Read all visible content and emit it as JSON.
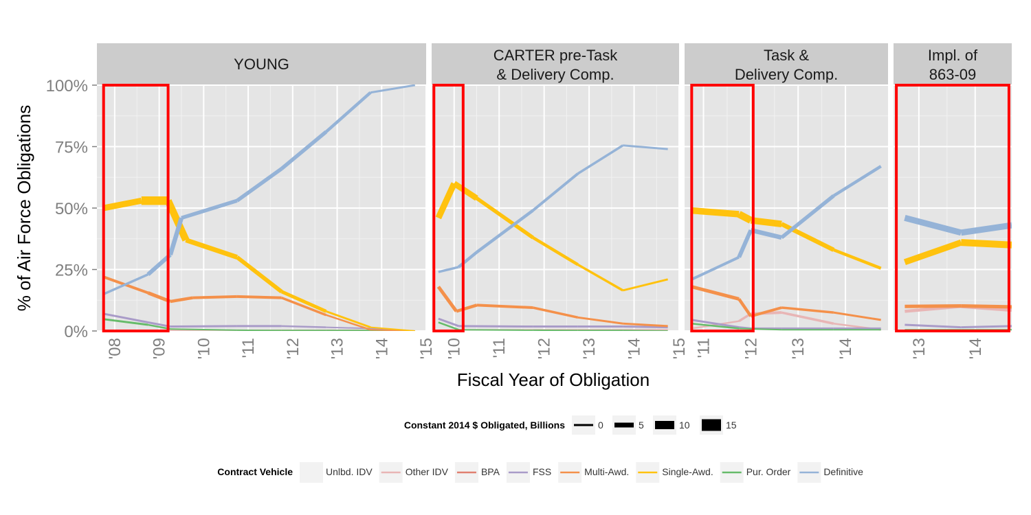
{
  "chart_data": {
    "type": "line",
    "ylabel": "% of  Air Force  Obligations",
    "xlabel": "Fiscal Year of Obligation",
    "y_ticks": [
      "0%",
      "25%",
      "50%",
      "75%",
      "100%"
    ],
    "ylim": [
      0,
      1
    ],
    "colors": {
      "Unlbd. IDV": "#f2f2f2",
      "Other IDV": "#e8b5b5",
      "BPA": "#e08070",
      "FSS": "#a99bc8",
      "Multi-Awd.": "#f4904a",
      "Single-Awd.": "#ffc20e",
      "Pur. Order": "#66bb6a",
      "Definitive": "#95b3d7",
      "highlight": "#ff0000"
    },
    "panels": [
      {
        "title": "YOUNG",
        "xlim": [
          2007.6,
          2015.0
        ],
        "x_ticks": [
          "'08",
          "'09",
          "'10",
          "'11",
          "'12",
          "'13",
          "'14",
          "'15"
        ],
        "x_tick_values": [
          2008,
          2009,
          2010,
          2011,
          2012,
          2013,
          2014,
          2015
        ],
        "highlight": [
          2007.75,
          2009.2
        ],
        "series": [
          {
            "name": "Definitive",
            "x": [
              2007.75,
              2008.75,
              2009.25,
              2009.5,
              2010.75,
              2011.75,
              2012.75,
              2013.75,
              2014.75
            ],
            "y": [
              0.15,
              0.23,
              0.31,
              0.46,
              0.53,
              0.66,
              0.81,
              0.97,
              1.0
            ],
            "w": [
              2,
              5,
              7,
              6,
              5,
              6,
              5,
              4,
              2
            ]
          },
          {
            "name": "Single-Awd.",
            "x": [
              2007.75,
              2008.6,
              2009.2,
              2009.6,
              2010.75,
              2011.75,
              2012.75,
              2013.75,
              2014.75
            ],
            "y": [
              0.5,
              0.53,
              0.53,
              0.37,
              0.3,
              0.16,
              0.08,
              0.015,
              0.0
            ],
            "w": [
              6,
              12,
              13,
              8,
              6,
              6,
              4,
              2,
              2
            ]
          },
          {
            "name": "Multi-Awd.",
            "x": [
              2007.75,
              2008.75,
              2009.25,
              2009.75,
              2010.75,
              2011.75,
              2012.75,
              2013.75,
              2014.75
            ],
            "y": [
              0.22,
              0.155,
              0.12,
              0.135,
              0.14,
              0.135,
              0.065,
              0.005,
              0.0
            ],
            "w": [
              3,
              5,
              5,
              4,
              4,
              4,
              3,
              2,
              2
            ]
          },
          {
            "name": "FSS",
            "x": [
              2007.75,
              2008.75,
              2009.25,
              2010.75,
              2011.75,
              2012.75,
              2013.75,
              2014.75
            ],
            "y": [
              0.07,
              0.035,
              0.018,
              0.02,
              0.02,
              0.015,
              0.01,
              0.0
            ],
            "w": [
              3,
              3,
              3,
              3,
              3,
              2,
              2,
              2
            ]
          },
          {
            "name": "Pur. Order",
            "x": [
              2007.75,
              2008.75,
              2009.25,
              2010.75,
              2011.75,
              2012.75,
              2013.75,
              2014.75
            ],
            "y": [
              0.048,
              0.025,
              0.008,
              0.003,
              0.002,
              0.002,
              0.002,
              0.0
            ],
            "w": [
              3,
              3,
              2,
              2,
              2,
              2,
              2,
              2
            ]
          },
          {
            "name": "Other IDV",
            "x": [
              2007.75,
              2009.25,
              2010.75,
              2011.75,
              2012.75,
              2013.75,
              2014.75
            ],
            "y": [
              0.003,
              0.003,
              0.003,
              0.003,
              0.003,
              0.003,
              0.0
            ],
            "w": [
              2,
              2,
              2,
              2,
              2,
              2,
              2
            ]
          }
        ]
      },
      {
        "title": "CARTER pre-Task",
        "title2": "& Delivery Comp.",
        "xlim": [
          2009.5,
          2015.0
        ],
        "x_ticks": [
          "'10",
          "'11",
          "'12",
          "'13",
          "'14",
          "'15"
        ],
        "x_tick_values": [
          2010,
          2011,
          2012,
          2013,
          2014,
          2015
        ],
        "highlight": [
          2009.55,
          2010.2
        ],
        "series": [
          {
            "name": "Definitive",
            "x": [
              2009.65,
              2010.1,
              2010.5,
              2011.75,
              2012.75,
              2013.75,
              2014.75
            ],
            "y": [
              0.24,
              0.26,
              0.32,
              0.49,
              0.64,
              0.755,
              0.74
            ],
            "w": [
              3,
              4,
              5,
              4,
              4,
              3,
              3
            ]
          },
          {
            "name": "Single-Awd.",
            "x": [
              2009.65,
              2010.0,
              2010.5,
              2011.75,
              2012.75,
              2013.75,
              2014.75
            ],
            "y": [
              0.46,
              0.6,
              0.54,
              0.38,
              0.27,
              0.165,
              0.21
            ],
            "w": [
              7,
              11,
              6,
              5,
              4,
              3,
              3
            ]
          },
          {
            "name": "Multi-Awd.",
            "x": [
              2009.65,
              2010.05,
              2010.5,
              2011.75,
              2012.75,
              2013.75,
              2014.75
            ],
            "y": [
              0.18,
              0.08,
              0.105,
              0.095,
              0.055,
              0.03,
              0.02
            ],
            "w": [
              5,
              5,
              4,
              4,
              3,
              3,
              3
            ]
          },
          {
            "name": "FSS",
            "x": [
              2009.65,
              2010.1,
              2011.75,
              2012.75,
              2013.75,
              2014.75
            ],
            "y": [
              0.05,
              0.02,
              0.018,
              0.018,
              0.018,
              0.015
            ],
            "w": [
              3,
              3,
              3,
              3,
              3,
              3
            ]
          },
          {
            "name": "Pur. Order",
            "x": [
              2009.65,
              2010.1,
              2011.75,
              2012.75,
              2013.75,
              2014.75
            ],
            "y": [
              0.035,
              0.005,
              0.003,
              0.002,
              0.002,
              0.0
            ],
            "w": [
              3,
              2,
              2,
              2,
              2,
              2
            ]
          },
          {
            "name": "Other IDV",
            "x": [
              2009.65,
              2010.5,
              2011.75,
              2012.75,
              2013.75,
              2014.75
            ],
            "y": [
              0.003,
              0.005,
              0.005,
              0.005,
              0.005,
              0.005
            ],
            "w": [
              2,
              2,
              2,
              2,
              2,
              2
            ]
          }
        ]
      },
      {
        "title": "Task &",
        "title2": "Delivery Comp.",
        "xlim": [
          2010.6,
          2014.9
        ],
        "x_ticks": [
          "'11",
          "'12",
          "'13",
          "'14"
        ],
        "x_tick_values": [
          2011,
          2012,
          2013,
          2014
        ],
        "highlight": [
          2010.75,
          2012.05
        ],
        "series": [
          {
            "name": "Definitive",
            "x": [
              2010.75,
              2011.75,
              2012.0,
              2012.65,
              2013.75,
              2014.75
            ],
            "y": [
              0.21,
              0.3,
              0.41,
              0.38,
              0.55,
              0.67
            ],
            "w": [
              3,
              5,
              7,
              6,
              5,
              4
            ]
          },
          {
            "name": "Single-Awd.",
            "x": [
              2010.75,
              2011.75,
              2012.0,
              2012.65,
              2013.75,
              2014.75
            ],
            "y": [
              0.49,
              0.475,
              0.45,
              0.435,
              0.33,
              0.255
            ],
            "w": [
              9,
              10,
              11,
              8,
              5,
              4
            ]
          },
          {
            "name": "Multi-Awd.",
            "x": [
              2010.75,
              2011.75,
              2012.0,
              2012.65,
              2013.75,
              2014.75
            ],
            "y": [
              0.18,
              0.13,
              0.06,
              0.095,
              0.075,
              0.045
            ],
            "w": [
              5,
              5,
              4,
              4,
              3,
              3
            ]
          },
          {
            "name": "Other IDV",
            "x": [
              2010.75,
              2011.75,
              2012.0,
              2012.65,
              2013.75,
              2014.75
            ],
            "y": [
              0.01,
              0.04,
              0.07,
              0.075,
              0.03,
              0.005
            ],
            "w": [
              2,
              3,
              4,
              4,
              3,
              2
            ]
          },
          {
            "name": "FSS",
            "x": [
              2010.75,
              2011.75,
              2012.0,
              2012.65,
              2013.75,
              2014.75
            ],
            "y": [
              0.045,
              0.015,
              0.01,
              0.01,
              0.01,
              0.01
            ],
            "w": [
              3,
              3,
              3,
              3,
              3,
              3
            ]
          },
          {
            "name": "Pur. Order",
            "x": [
              2010.75,
              2011.75,
              2012.65,
              2013.75,
              2014.75
            ],
            "y": [
              0.03,
              0.01,
              0.005,
              0.005,
              0.005
            ],
            "w": [
              3,
              2,
              2,
              2,
              2
            ]
          }
        ]
      },
      {
        "title": "Impl. of",
        "title2": "863-09",
        "xlim": [
          2012.55,
          2014.65
        ],
        "x_ticks": [
          "'13",
          "'14"
        ],
        "x_tick_values": [
          2013,
          2014
        ],
        "highlight": [
          2012.6,
          2014.6
        ],
        "series": [
          {
            "name": "Definitive",
            "x": [
              2012.75,
              2013.75,
              2014.65
            ],
            "y": [
              0.46,
              0.4,
              0.43
            ],
            "w": [
              9,
              9,
              9
            ]
          },
          {
            "name": "Single-Awd.",
            "x": [
              2012.75,
              2013.75,
              2014.65
            ],
            "y": [
              0.28,
              0.36,
              0.35
            ],
            "w": [
              8,
              10,
              10
            ]
          },
          {
            "name": "Multi-Awd.",
            "x": [
              2012.75,
              2013.75,
              2014.65
            ],
            "y": [
              0.1,
              0.102,
              0.098
            ],
            "w": [
              5,
              5,
              5
            ]
          },
          {
            "name": "Other IDV",
            "x": [
              2012.75,
              2013.75,
              2014.65
            ],
            "y": [
              0.08,
              0.1,
              0.085
            ],
            "w": [
              4,
              5,
              5
            ]
          },
          {
            "name": "FSS",
            "x": [
              2012.75,
              2013.75,
              2014.65
            ],
            "y": [
              0.025,
              0.015,
              0.02
            ],
            "w": [
              3,
              3,
              3
            ]
          },
          {
            "name": "Pur. Order",
            "x": [
              2012.75,
              2013.75,
              2014.65
            ],
            "y": [
              0.005,
              0.005,
              0.005
            ],
            "w": [
              2,
              2,
              2
            ]
          }
        ]
      }
    ],
    "size_legend": {
      "title": "Constant 2014 $ Obligated, Billions",
      "items": [
        {
          "label": "0",
          "w": 3
        },
        {
          "label": "5",
          "w": 7
        },
        {
          "label": "10",
          "w": 12
        },
        {
          "label": "15",
          "w": 17
        }
      ]
    },
    "color_legend": {
      "title": "Contract Vehicle",
      "items": [
        "Unlbd. IDV",
        "Other IDV",
        "BPA",
        "FSS",
        "Multi-Awd.",
        "Single-Awd.",
        "Pur. Order",
        "Definitive"
      ]
    }
  }
}
